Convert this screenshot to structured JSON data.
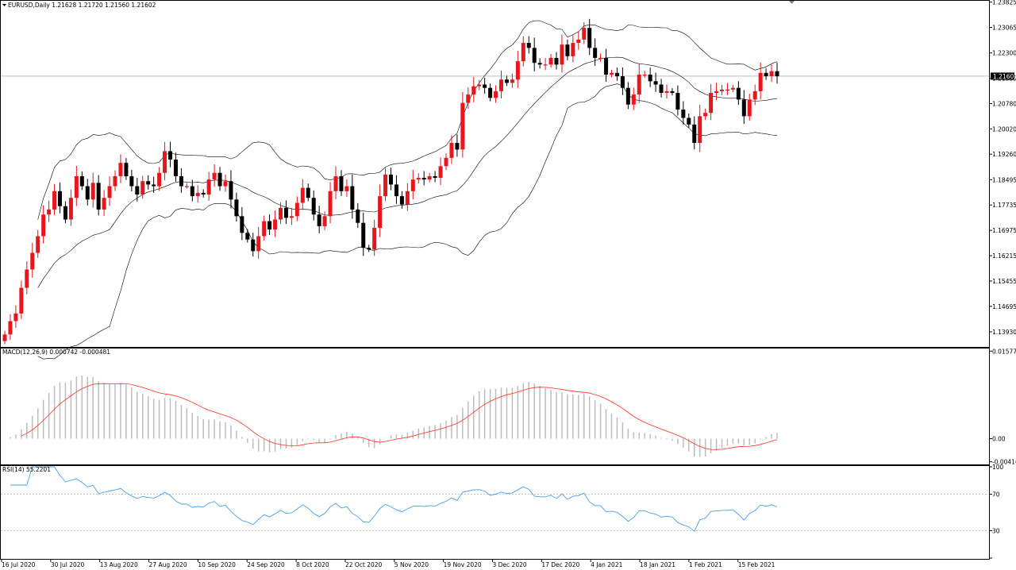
{
  "header": {
    "price_line": "EURUSD,Daily  1.21628 1.21720 1.21560 1.21602",
    "macd_line": "MACD(12,26,9) 0.000742 -0.000481",
    "rsi_line": "RSI(14) 55.2201"
  },
  "current_price_label": "1.21602",
  "colors": {
    "bull": "#e8151d",
    "bear": "#000000",
    "bands": "#000000",
    "macd_hist": "#bdbdbd",
    "macd_signal": "#ff3020",
    "rsi_line": "#4a9fe8",
    "grid_text": "#000000",
    "price_line": "#c0c0c0"
  },
  "chart_data": [
    {
      "type": "candlestick",
      "panel": "price",
      "symbol": "EURUSD",
      "timeframe": "Daily",
      "ylim": [
        1.135,
        1.2384
      ],
      "y_ticks": [
        "1.23825",
        "1.23065",
        "1.22300",
        "1.21535",
        "1.20780",
        "1.20020",
        "1.19260",
        "1.18495",
        "1.17735",
        "1.16975",
        "1.16215",
        "1.15455",
        "1.14695",
        "1.13930"
      ],
      "x_labels": [
        "16 Jul 2020",
        "30 Jul 2020",
        "13 Aug 2020",
        "27 Aug 2020",
        "10 Sep 2020",
        "24 Sep 2020",
        "8 Oct 2020",
        "22 Oct 2020",
        "5 Nov 2020",
        "19 Nov 2020",
        "3 Dec 2020",
        "17 Dec 2020",
        "4 Jan 2021",
        "18 Jan 2021",
        "1 Feb 2021",
        "15 Feb 2021"
      ],
      "current_price": 1.21602,
      "bollinger_period": 20,
      "bollinger_deviation": 2,
      "closes": [
        1.1385,
        1.1425,
        1.1448,
        1.1525,
        1.158,
        1.163,
        1.168,
        1.1745,
        1.176,
        1.1815,
        1.177,
        1.173,
        1.1795,
        1.186,
        1.183,
        1.179,
        1.184,
        1.176,
        1.1795,
        1.183,
        1.186,
        1.19,
        1.186,
        1.183,
        1.1805,
        1.1845,
        1.1835,
        1.183,
        1.187,
        1.1935,
        1.191,
        1.186,
        1.183,
        1.183,
        1.18,
        1.181,
        1.1805,
        1.185,
        1.187,
        1.183,
        1.1845,
        1.179,
        1.174,
        1.169,
        1.167,
        1.1635,
        1.168,
        1.1725,
        1.17,
        1.173,
        1.1765,
        1.1735,
        1.174,
        1.178,
        1.1825,
        1.1795,
        1.1745,
        1.171,
        1.174,
        1.1815,
        1.186,
        1.1815,
        1.183,
        1.176,
        1.172,
        1.1645,
        1.164,
        1.1705,
        1.18,
        1.1865,
        1.1835,
        1.18,
        1.1775,
        1.1815,
        1.185,
        1.1855,
        1.185,
        1.186,
        1.1855,
        1.189,
        1.1915,
        1.196,
        1.194,
        1.208,
        1.2105,
        1.213,
        1.2135,
        1.2125,
        1.2095,
        1.2115,
        1.215,
        1.214,
        1.215,
        1.2205,
        1.226,
        1.2245,
        1.22,
        1.2195,
        1.2195,
        1.2215,
        1.2195,
        1.2255,
        1.222,
        1.226,
        1.227,
        1.2305,
        1.2245,
        1.2215,
        1.2215,
        1.2165,
        1.217,
        1.216,
        1.2125,
        1.2075,
        1.2105,
        1.2165,
        1.2165,
        1.2145,
        1.2135,
        1.211,
        1.2115,
        1.211,
        1.206,
        1.2035,
        1.2015,
        1.196,
        1.204,
        1.205,
        1.211,
        1.2115,
        1.212,
        1.212,
        1.2125,
        1.209,
        1.204,
        1.209,
        1.2115,
        1.217,
        1.216,
        1.2175,
        1.216
      ]
    },
    {
      "type": "bar",
      "panel": "macd",
      "name": "MACD(12,26,9)",
      "main": 0.000742,
      "signal": -0.000481,
      "ylim": [
        -0.0045,
        0.0161
      ],
      "y_ticks": [
        "0.015771",
        "0.00",
        "-0.004168"
      ]
    },
    {
      "type": "line",
      "panel": "rsi",
      "name": "RSI(14)",
      "current": 55.2201,
      "ylim": [
        0,
        100
      ],
      "levels": [
        70,
        30
      ],
      "y_ticks": [
        "100",
        "70",
        "30",
        "0"
      ]
    }
  ]
}
